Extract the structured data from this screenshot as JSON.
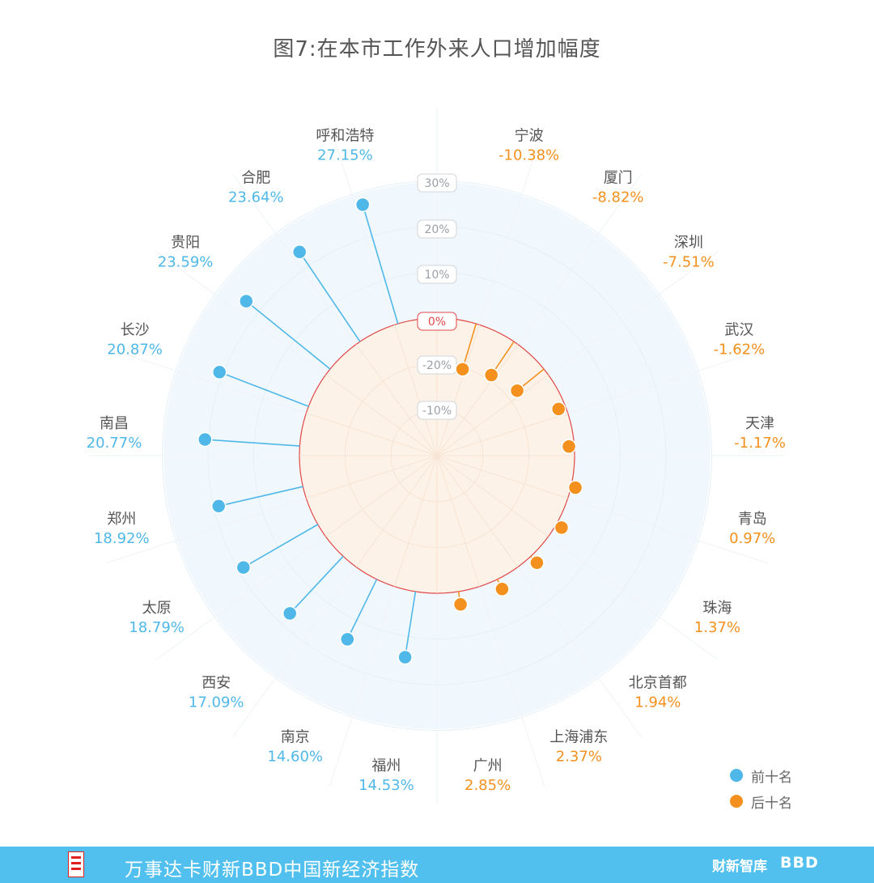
{
  "title": "图7:在本市工作外来人口增加幅度",
  "chart_data": {
    "type": "radial-lollipop",
    "title": "图7:在本市工作外来人口增加幅度",
    "tick_labels": [
      "30%",
      "20%",
      "10%",
      "0%",
      "-20%",
      "-10%"
    ],
    "legend": [
      {
        "label": "前十名",
        "color": "#4fb8e8"
      },
      {
        "label": "后十名",
        "color": "#f3901e"
      }
    ],
    "colors": {
      "top": "#4fb8e8",
      "bottom": "#f3901e",
      "zero": "#e04848"
    },
    "top10": [
      {
        "city": "呼和浩特",
        "value": 27.15,
        "label": "27.15%"
      },
      {
        "city": "合肥",
        "value": 23.64,
        "label": "23.64%"
      },
      {
        "city": "贵阳",
        "value": 23.59,
        "label": "23.59%"
      },
      {
        "city": "长沙",
        "value": 20.87,
        "label": "20.87%"
      },
      {
        "city": "南昌",
        "value": 20.77,
        "label": "20.77%"
      },
      {
        "city": "郑州",
        "value": 18.92,
        "label": "18.92%"
      },
      {
        "city": "太原",
        "value": 18.79,
        "label": "18.79%"
      },
      {
        "city": "西安",
        "value": 17.09,
        "label": "17.09%"
      },
      {
        "city": "南京",
        "value": 14.6,
        "label": "14.60%"
      },
      {
        "city": "福州",
        "value": 14.53,
        "label": "14.53%"
      }
    ],
    "bottom10": [
      {
        "city": "宁波",
        "value": -10.38,
        "label": "-10.38%"
      },
      {
        "city": "厦门",
        "value": -8.82,
        "label": "-8.82%"
      },
      {
        "city": "深圳",
        "value": -7.51,
        "label": "-7.51%"
      },
      {
        "city": "武汉",
        "value": -1.62,
        "label": "-1.62%"
      },
      {
        "city": "天津",
        "value": -1.17,
        "label": "-1.17%"
      },
      {
        "city": "青岛",
        "value": 0.97,
        "label": "0.97%"
      },
      {
        "city": "珠海",
        "value": 1.37,
        "label": "1.37%"
      },
      {
        "city": "北京首都",
        "value": 1.94,
        "label": "1.94%"
      },
      {
        "city": "上海浦东",
        "value": 2.37,
        "label": "2.37%"
      },
      {
        "city": "广州",
        "value": 2.85,
        "label": "2.85%"
      }
    ]
  },
  "footer": {
    "text": "万事达卡财新BBD中国新经济指数",
    "brand": "财新智库",
    "brand_sub": "BBD"
  }
}
